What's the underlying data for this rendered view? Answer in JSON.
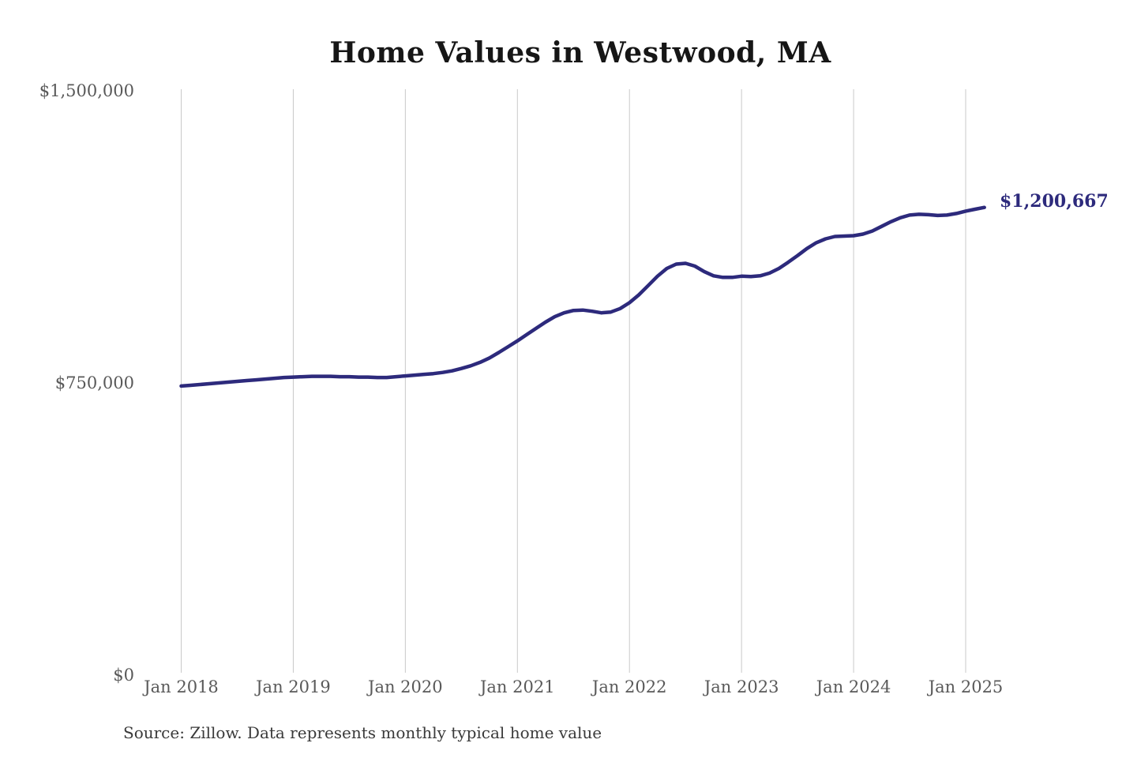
{
  "title": "Home Values in Westwood, MA",
  "source_note": "Source: Zillow. Data represents monthly typical home value",
  "colors": {
    "line": "#2d2a7c",
    "end_label": "#2d2a7c",
    "grid": "#c9c9c9",
    "axis_text": "#595959",
    "title_text": "#161616",
    "source_text": "#3a3a3a",
    "background": "#ffffff"
  },
  "chart_data": {
    "type": "line",
    "title": "Home Values in Westwood, MA",
    "xlabel": "",
    "ylabel": "",
    "ylim": [
      0,
      1500000
    ],
    "grid": "vertical-only",
    "legend": "none",
    "y_ticks": [
      {
        "value": 1500000,
        "label": "$1,500,000"
      },
      {
        "value": 750000,
        "label": "$750,000"
      },
      {
        "value": 0,
        "label": "$0"
      }
    ],
    "x_tick_labels": [
      "Jan 2018",
      "Jan 2019",
      "Jan 2020",
      "Jan 2021",
      "Jan 2022",
      "Jan 2023",
      "Jan 2024",
      "Jan 2025"
    ],
    "end_label": "$1,200,667",
    "final_value": 1200667,
    "series_name": "Typical home value (monthly)",
    "months": [
      "2018-01",
      "2018-02",
      "2018-03",
      "2018-04",
      "2018-05",
      "2018-06",
      "2018-07",
      "2018-08",
      "2018-09",
      "2018-10",
      "2018-11",
      "2018-12",
      "2019-01",
      "2019-02",
      "2019-03",
      "2019-04",
      "2019-05",
      "2019-06",
      "2019-07",
      "2019-08",
      "2019-09",
      "2019-10",
      "2019-11",
      "2019-12",
      "2020-01",
      "2020-02",
      "2020-03",
      "2020-04",
      "2020-05",
      "2020-06",
      "2020-07",
      "2020-08",
      "2020-09",
      "2020-10",
      "2020-11",
      "2020-12",
      "2021-01",
      "2021-02",
      "2021-03",
      "2021-04",
      "2021-05",
      "2021-06",
      "2021-07",
      "2021-08",
      "2021-09",
      "2021-10",
      "2021-11",
      "2021-12",
      "2022-01",
      "2022-02",
      "2022-03",
      "2022-04",
      "2022-05",
      "2022-06",
      "2022-07",
      "2022-08",
      "2022-09",
      "2022-10",
      "2022-11",
      "2022-12",
      "2023-01",
      "2023-02",
      "2023-03",
      "2023-04",
      "2023-05",
      "2023-06",
      "2023-07",
      "2023-08",
      "2023-09",
      "2023-10",
      "2023-11",
      "2023-12",
      "2024-01",
      "2024-02",
      "2024-03",
      "2024-04",
      "2024-05",
      "2024-06",
      "2024-07",
      "2024-08",
      "2024-09",
      "2024-10",
      "2024-11",
      "2024-12",
      "2025-01",
      "2025-02",
      "2025-03"
    ],
    "values": [
      742000,
      744000,
      746000,
      748000,
      750000,
      752000,
      754000,
      756000,
      758000,
      760000,
      762000,
      764000,
      765000,
      766000,
      767000,
      767000,
      767000,
      766000,
      766000,
      765000,
      765000,
      764000,
      764000,
      766000,
      768000,
      770000,
      772000,
      774000,
      777000,
      781000,
      787000,
      794000,
      803000,
      814000,
      828000,
      843000,
      858000,
      874000,
      890000,
      906000,
      920000,
      930000,
      936000,
      937000,
      934000,
      930000,
      932000,
      941000,
      956000,
      976000,
      1000000,
      1024000,
      1044000,
      1055000,
      1057000,
      1050000,
      1036000,
      1025000,
      1021000,
      1021000,
      1024000,
      1023000,
      1025000,
      1032000,
      1044000,
      1060000,
      1077000,
      1095000,
      1110000,
      1120000,
      1126000,
      1127000,
      1128000,
      1132000,
      1140000,
      1152000,
      1164000,
      1174000,
      1181000,
      1183000,
      1182000,
      1180000,
      1181000,
      1185000,
      1191000,
      1196000,
      1200667
    ]
  }
}
